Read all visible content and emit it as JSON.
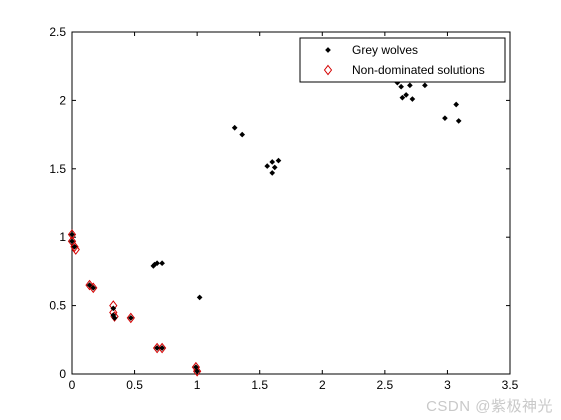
{
  "chart_data": {
    "type": "scatter",
    "title": "",
    "xlabel": "",
    "ylabel": "",
    "xlim": [
      0,
      3.5
    ],
    "ylim": [
      0,
      2.5
    ],
    "xticks": [
      "0",
      "0.5",
      "1",
      "1.5",
      "2",
      "2.5",
      "3",
      "3.5"
    ],
    "yticks": [
      "0",
      "0.5",
      "1",
      "1.5",
      "2",
      "2.5"
    ],
    "grid": false,
    "legend_position": "top-right",
    "series": [
      {
        "name": "Grey wolves",
        "marker": "dot",
        "color": "#000000",
        "points": [
          [
            0.0,
            1.02
          ],
          [
            0.0,
            0.97
          ],
          [
            0.02,
            0.93
          ],
          [
            0.14,
            0.65
          ],
          [
            0.17,
            0.63
          ],
          [
            0.33,
            0.48
          ],
          [
            0.33,
            0.43
          ],
          [
            0.34,
            0.41
          ],
          [
            0.47,
            0.41
          ],
          [
            0.65,
            0.79
          ],
          [
            0.66,
            0.8
          ],
          [
            0.68,
            0.81
          ],
          [
            0.72,
            0.81
          ],
          [
            0.68,
            0.19
          ],
          [
            0.72,
            0.19
          ],
          [
            0.99,
            0.05
          ],
          [
            1.0,
            0.02
          ],
          [
            1.02,
            0.56
          ],
          [
            1.3,
            1.8
          ],
          [
            1.36,
            1.75
          ],
          [
            1.56,
            1.52
          ],
          [
            1.6,
            1.55
          ],
          [
            1.6,
            1.47
          ],
          [
            1.62,
            1.51
          ],
          [
            1.65,
            1.56
          ],
          [
            2.38,
            2.44
          ],
          [
            2.6,
            2.13
          ],
          [
            2.63,
            2.1
          ],
          [
            2.64,
            2.02
          ],
          [
            2.67,
            2.04
          ],
          [
            2.7,
            2.11
          ],
          [
            2.72,
            2.01
          ],
          [
            2.74,
            2.15
          ],
          [
            2.82,
            2.11
          ],
          [
            2.98,
            1.87
          ],
          [
            3.07,
            1.97
          ],
          [
            3.09,
            1.85
          ]
        ]
      },
      {
        "name": "Non-dominated solutions",
        "marker": "diamond",
        "color": "#d40000",
        "points": [
          [
            0.0,
            1.02
          ],
          [
            0.0,
            0.97
          ],
          [
            0.02,
            0.93
          ],
          [
            0.03,
            0.91
          ],
          [
            0.14,
            0.65
          ],
          [
            0.17,
            0.63
          ],
          [
            0.33,
            0.5
          ],
          [
            0.33,
            0.45
          ],
          [
            0.34,
            0.42
          ],
          [
            0.47,
            0.41
          ],
          [
            0.68,
            0.19
          ],
          [
            0.72,
            0.19
          ],
          [
            0.99,
            0.05
          ],
          [
            1.0,
            0.02
          ]
        ]
      }
    ]
  },
  "watermark": "CSDN @紫极神光"
}
